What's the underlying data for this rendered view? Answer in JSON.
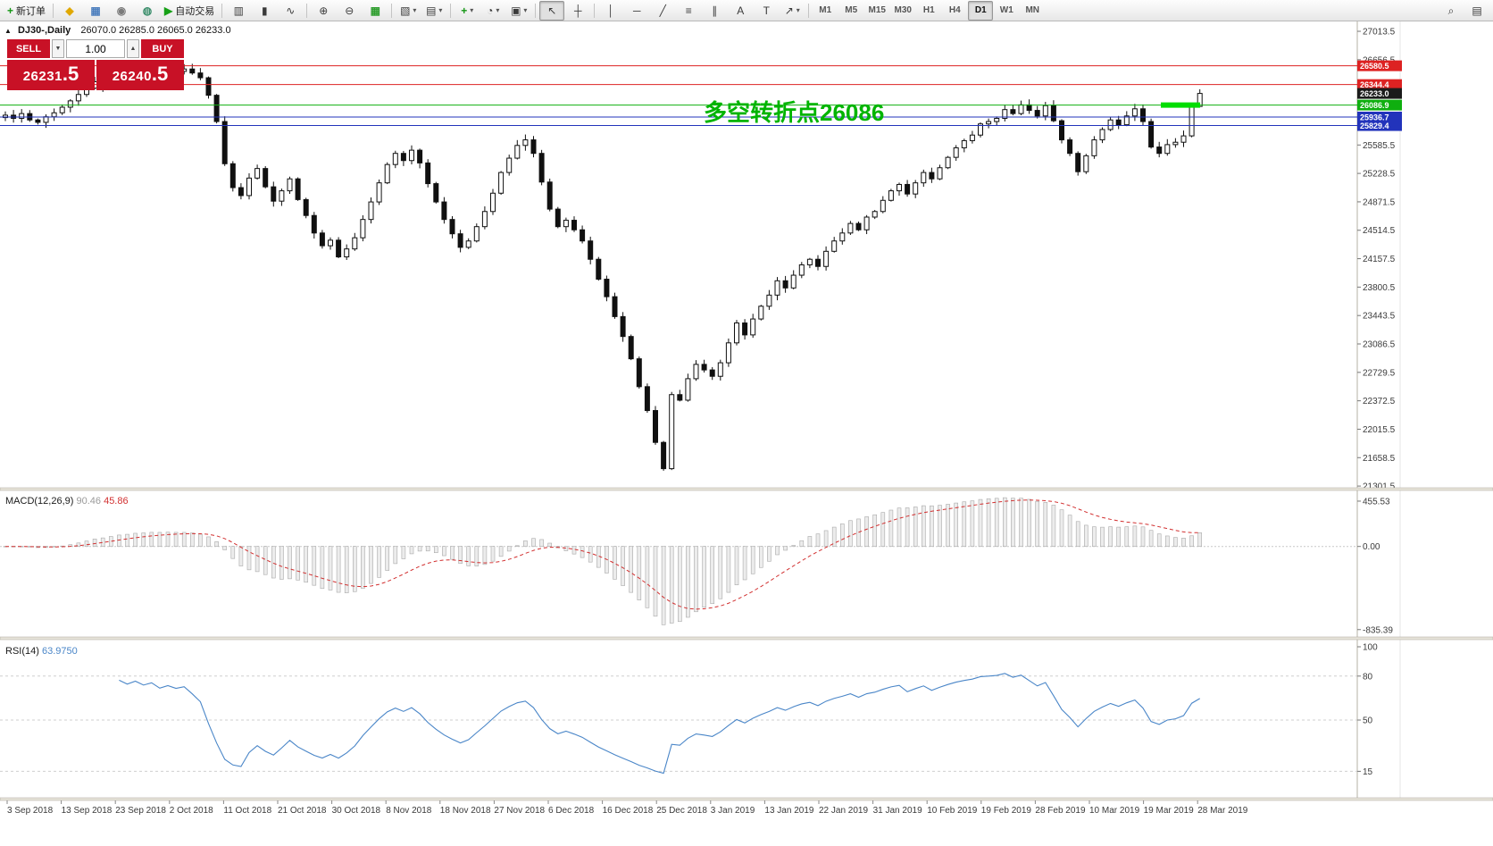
{
  "toolbar": {
    "groups": [
      {
        "items": [
          {
            "name": "new-order-button",
            "glyph": "+",
            "color": "#149614",
            "label": "新订单"
          }
        ]
      },
      {
        "items": [
          {
            "name": "market-watch-button",
            "glyph": "◆",
            "color": "#e0a800"
          },
          {
            "name": "data-window-button",
            "glyph": "▦",
            "color": "#4d7fbe"
          },
          {
            "name": "navigator-button",
            "glyph": "◉",
            "color": "#7a7a7a"
          },
          {
            "name": "terminal-button",
            "glyph": "◍",
            "color": "#3d8f6d"
          },
          {
            "name": "autotrading-button",
            "glyph": "▶",
            "color": "#16a016",
            "label": "自动交易"
          }
        ]
      },
      {
        "items": [
          {
            "name": "bar-chart-button",
            "glyph": "▥"
          },
          {
            "name": "candlestick-chart-button",
            "glyph": "▮"
          },
          {
            "name": "line-chart-button",
            "glyph": "∿"
          }
        ]
      },
      {
        "items": [
          {
            "name": "zoom-in-button",
            "glyph": "⊕"
          },
          {
            "name": "zoom-out-button",
            "glyph": "⊖"
          },
          {
            "name": "tile-windows-button",
            "glyph": "▦",
            "color": "#2f9e2f"
          }
        ]
      },
      {
        "items": [
          {
            "name": "profiles-button",
            "glyph": "▧",
            "dropdown": true
          },
          {
            "name": "shift-chart-button",
            "glyph": "▤",
            "dropdown": true
          }
        ]
      },
      {
        "items": [
          {
            "name": "indicators-button",
            "glyph": "+",
            "color": "#149614",
            "dropdown": true
          },
          {
            "name": "periods-button",
            "glyph": "◔",
            "dropdown": true
          },
          {
            "name": "templates-button",
            "glyph": "▣",
            "dropdown": true
          }
        ]
      },
      {
        "items": [
          {
            "name": "cursor-button",
            "glyph": "↖",
            "active": true
          },
          {
            "name": "crosshair-button",
            "glyph": "┼"
          }
        ]
      },
      {
        "items": [
          {
            "name": "vertical-line-button",
            "glyph": "│"
          },
          {
            "name": "horizontal-line-button",
            "glyph": "─"
          },
          {
            "name": "trendline-button",
            "glyph": "╱"
          },
          {
            "name": "fibonacci-button",
            "glyph": "≡"
          },
          {
            "name": "channel-button",
            "glyph": "∥"
          },
          {
            "name": "text-button",
            "glyph": "A"
          },
          {
            "name": "text-label-button",
            "glyph": "T"
          },
          {
            "name": "arrows-button",
            "glyph": "↗",
            "dropdown": true
          }
        ]
      },
      {
        "items": [
          {
            "name": "timeframe-m1-button",
            "label": "M1",
            "tf": true
          },
          {
            "name": "timeframe-m5-button",
            "label": "M5",
            "tf": true
          },
          {
            "name": "timeframe-m15-button",
            "label": "M15",
            "tf": true
          },
          {
            "name": "timeframe-m30-button",
            "label": "M30",
            "tf": true
          },
          {
            "name": "timeframe-h1-button",
            "label": "H1",
            "tf": true
          },
          {
            "name": "timeframe-h4-button",
            "label": "H4",
            "tf": true
          },
          {
            "name": "timeframe-d1-button",
            "label": "D1",
            "tf": true,
            "active": true
          },
          {
            "name": "timeframe-w1-button",
            "label": "W1",
            "tf": true
          },
          {
            "name": "timeframe-mn-button",
            "label": "MN",
            "tf": true
          }
        ]
      }
    ],
    "right_items": [
      {
        "name": "search-button",
        "glyph": "⌕"
      },
      {
        "name": "panels-button",
        "glyph": "▤"
      }
    ]
  },
  "chart_header": {
    "expander": "▲",
    "title": "DJ30-,Daily",
    "ohlc": "26070.0 26285.0 26065.0 26233.0"
  },
  "trade_panel": {
    "sell_label": "SELL",
    "buy_label": "BUY",
    "volume": "1.00",
    "spin_down": "▼",
    "spin_up": "▲",
    "sell_price_main": "26231",
    "sell_price_frac": ".5",
    "buy_price_main": "26240",
    "buy_price_frac": ".5"
  },
  "annotation": {
    "text": "多空转折点26086",
    "color": "#00b400"
  },
  "chart_data": {
    "type": "candlestick",
    "symbol": "DJ30",
    "timeframe": "Daily",
    "last_candle": {
      "open": 26070.0,
      "high": 26285.0,
      "low": 26065.0,
      "close": 26233.0
    },
    "closes": [
      25960,
      25920,
      25980,
      25900,
      25870,
      25940,
      25990,
      26060,
      26140,
      26220,
      26300,
      26380,
      26320,
      26410,
      26460,
      26430,
      26500,
      26470,
      26520,
      26480,
      26530,
      26510,
      26540,
      26490,
      26430,
      26210,
      25880,
      25350,
      25050,
      24950,
      25170,
      25290,
      25060,
      24880,
      25010,
      25160,
      24900,
      24700,
      24480,
      24320,
      24390,
      24180,
      24280,
      24420,
      24650,
      24870,
      25110,
      25340,
      25480,
      25390,
      25520,
      25360,
      25100,
      24870,
      24650,
      24470,
      24300,
      24380,
      24560,
      24750,
      24980,
      25240,
      25420,
      25580,
      25650,
      25480,
      25120,
      24780,
      24560,
      24640,
      24520,
      24380,
      24150,
      23900,
      23680,
      23430,
      23180,
      22900,
      22550,
      22250,
      21850,
      21520,
      22450,
      22380,
      22650,
      22830,
      22760,
      22680,
      22850,
      23100,
      23350,
      23200,
      23400,
      23560,
      23700,
      23880,
      23790,
      23950,
      24080,
      24150,
      24060,
      24250,
      24380,
      24480,
      24600,
      24520,
      24680,
      24750,
      24890,
      25010,
      25090,
      24970,
      25110,
      25240,
      25160,
      25300,
      25430,
      25550,
      25640,
      25710,
      25850,
      25880,
      25920,
      26030,
      25980,
      26090,
      26020,
      25950,
      26080,
      25890,
      25650,
      25480,
      25250,
      25450,
      25650,
      25780,
      25900,
      25840,
      25950,
      26040,
      25880,
      25560,
      25480,
      25590,
      25620,
      25700,
      26060,
      26233
    ],
    "y_axis_labels": [
      "27013.5",
      "26656.5",
      "26299.5",
      "25942.5",
      "25585.5",
      "25228.5",
      "24871.5",
      "24514.5",
      "24157.5",
      "23800.5",
      "23443.5",
      "23086.5",
      "22729.5",
      "22372.5",
      "22015.5",
      "21658.5",
      "21301.5"
    ],
    "x_axis_labels": [
      "3 Sep 2018",
      "13 Sep 2018",
      "23 Sep 2018",
      "2 Oct 2018",
      "11 Oct 2018",
      "21 Oct 2018",
      "30 Oct 2018",
      "8 Nov 2018",
      "18 Nov 2018",
      "27 Nov 2018",
      "6 Dec 2018",
      "16 Dec 2018",
      "25 Dec 2018",
      "3 Jan 2019",
      "13 Jan 2019",
      "22 Jan 2019",
      "31 Jan 2019",
      "10 Feb 2019",
      "19 Feb 2019",
      "28 Feb 2019",
      "10 Mar 2019",
      "19 Mar 2019",
      "28 Mar 2019"
    ],
    "levels": [
      {
        "price": 26580.5,
        "label": "26580.5",
        "color": "#dd2222",
        "line": true
      },
      {
        "price": 26344.4,
        "label": "26344.4",
        "color": "#dd2222",
        "line": true
      },
      {
        "price": 26233.0,
        "label": "26233.0",
        "color": "#1b1b1b",
        "line": false
      },
      {
        "price": 26086.9,
        "label": "26086.9",
        "color": "#0faf0f",
        "line": true
      },
      {
        "price": 25936.7,
        "label": "25936.7",
        "color": "#2233bb",
        "line": true
      },
      {
        "price": 25829.4,
        "label": "25829.4",
        "color": "#2233bb",
        "line": true
      }
    ],
    "highlight": {
      "price": 26086.9,
      "color": "#00dd00"
    },
    "macd": {
      "label": "MACD(12,26,9)",
      "value": "90.46",
      "signal": "45.86",
      "axis": [
        "455.53",
        "0.00",
        "-835.39"
      ]
    },
    "rsi": {
      "label": "RSI(14)",
      "value": "63.9750",
      "axis": [
        "100",
        "80",
        "50",
        "15"
      ],
      "levels": [
        80,
        50,
        15
      ]
    }
  }
}
